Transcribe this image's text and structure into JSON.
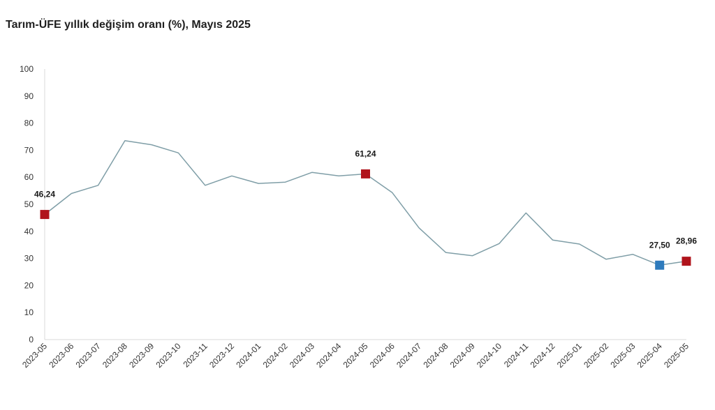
{
  "chart_data": {
    "type": "line",
    "title": "Tarım-ÜFE yıllık değişim oranı (%), Mayıs 2025",
    "xlabel": "",
    "ylabel": "",
    "ylim": [
      0,
      100
    ],
    "yticks": [
      0,
      10,
      20,
      30,
      40,
      50,
      60,
      70,
      80,
      90,
      100
    ],
    "grid": false,
    "categories": [
      "2023-05",
      "2023-06",
      "2023-07",
      "2023-08",
      "2023-09",
      "2023-10",
      "2023-11",
      "2023-12",
      "2024-01",
      "2024-02",
      "2024-03",
      "2024-04",
      "2024-05",
      "2024-06",
      "2024-07",
      "2024-08",
      "2024-09",
      "2024-10",
      "2024-11",
      "2024-12",
      "2025-01",
      "2025-02",
      "2025-03",
      "2025-04",
      "2025-05"
    ],
    "series": [
      {
        "values": [
          46.24,
          54.0,
          57.0,
          73.5,
          72.0,
          69.0,
          57.0,
          60.5,
          57.7,
          58.2,
          61.8,
          60.5,
          61.24,
          54.3,
          41.3,
          32.2,
          31.0,
          35.5,
          46.8,
          36.8,
          35.3,
          29.7,
          31.5,
          27.5,
          28.96
        ],
        "color": "#7f9ea7"
      }
    ],
    "highlights": [
      {
        "category": "2023-05",
        "value": 46.24,
        "label": "46,24",
        "color": "#b0141c"
      },
      {
        "category": "2024-05",
        "value": 61.24,
        "label": "61,24",
        "color": "#b0141c"
      },
      {
        "category": "2025-04",
        "value": 27.5,
        "label": "27,50",
        "color": "#2e7bbd"
      },
      {
        "category": "2025-05",
        "value": 28.96,
        "label": "28,96",
        "color": "#b0141c"
      }
    ],
    "axis_color": "#d9d9d9"
  }
}
